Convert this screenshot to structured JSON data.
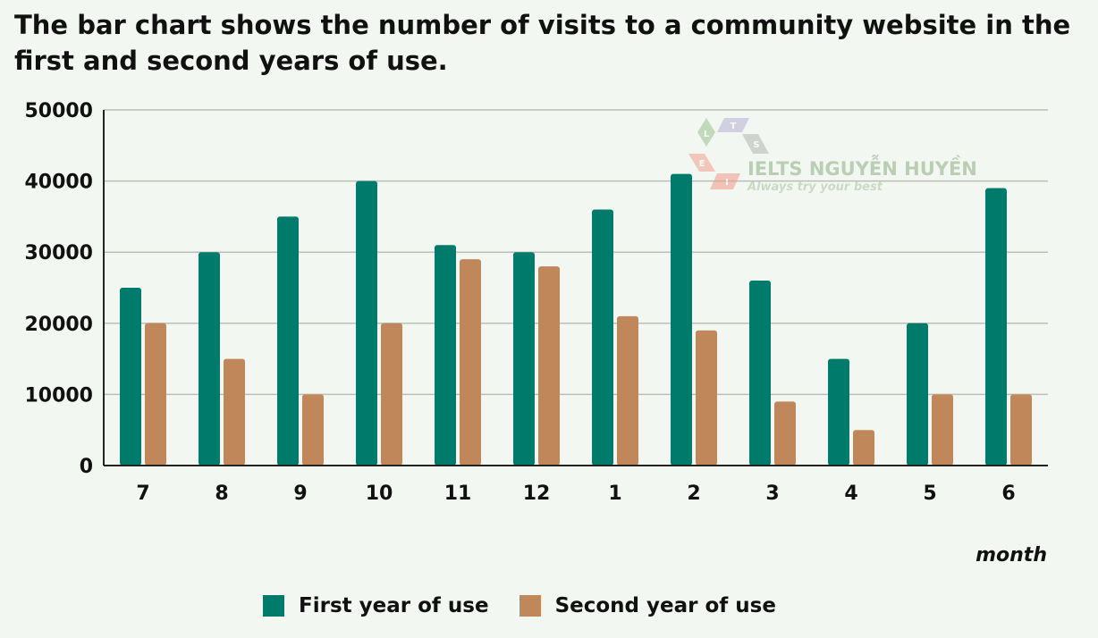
{
  "chart_data": {
    "type": "bar",
    "title": "The bar chart shows the number of visits to a community website in the first and second years of use.",
    "xlabel": "month",
    "ylabel": "",
    "categories": [
      "7",
      "8",
      "9",
      "10",
      "11",
      "12",
      "1",
      "2",
      "3",
      "4",
      "5",
      "6"
    ],
    "series": [
      {
        "name": "First year of use",
        "color": "#007a6a",
        "values": [
          25000,
          30000,
          35000,
          40000,
          31000,
          30000,
          36000,
          41000,
          26000,
          15000,
          20000,
          39000
        ]
      },
      {
        "name": "Second year of use",
        "color": "#c0875a",
        "values": [
          20000,
          15000,
          10000,
          20000,
          29000,
          28000,
          21000,
          19000,
          9000,
          5000,
          10000,
          10000
        ]
      }
    ],
    "ylim": [
      0,
      50000
    ],
    "yticks": [
      0,
      10000,
      20000,
      30000,
      40000,
      50000
    ],
    "grid": true,
    "legend_position": "bottom"
  },
  "watermark": {
    "brand": "IELTS NGUYỄN HUYỀN",
    "tagline": "Always try your best",
    "letters": [
      "L",
      "T",
      "S",
      "E",
      "I"
    ]
  }
}
